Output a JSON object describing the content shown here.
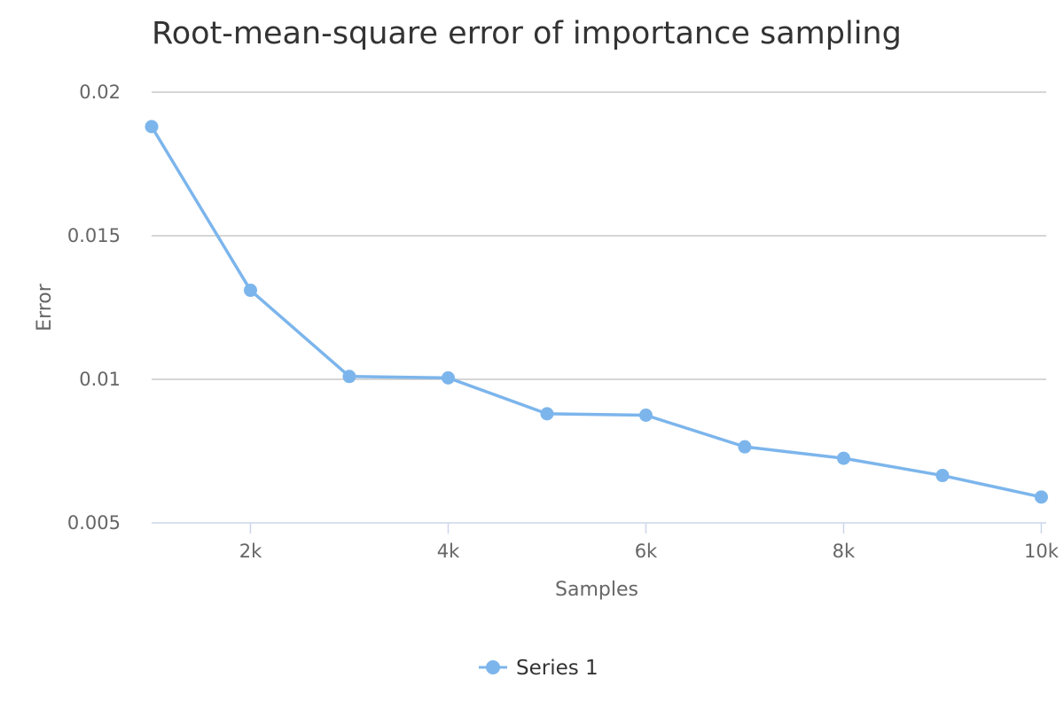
{
  "chart_data": {
    "type": "line",
    "title": "Root-mean-square error of importance sampling",
    "xlabel": "Samples",
    "ylabel": "Error",
    "x": [
      1000,
      2000,
      3000,
      4000,
      5000,
      6000,
      7000,
      8000,
      9000,
      10000
    ],
    "series": [
      {
        "name": "Series 1",
        "values": [
          0.0188,
          0.0131,
          0.0101,
          0.01005,
          0.0088,
          0.00875,
          0.00765,
          0.00725,
          0.00665,
          0.0059
        ]
      }
    ],
    "xlim": [
      1000,
      10050
    ],
    "ylim": [
      0.005,
      0.02
    ],
    "xticks": [
      2000,
      4000,
      6000,
      8000,
      10000
    ],
    "xtick_labels": [
      "2k",
      "4k",
      "6k",
      "8k",
      "10k"
    ],
    "yticks": [
      0.005,
      0.01,
      0.015,
      0.02
    ],
    "ytick_labels": [
      "0.005",
      "0.01",
      "0.015",
      "0.02"
    ],
    "grid": true,
    "legend": "bottom-center",
    "colors": {
      "series": "#7cb5ec",
      "grid": "#c8c8c8",
      "axis": "#ccd6eb"
    }
  }
}
